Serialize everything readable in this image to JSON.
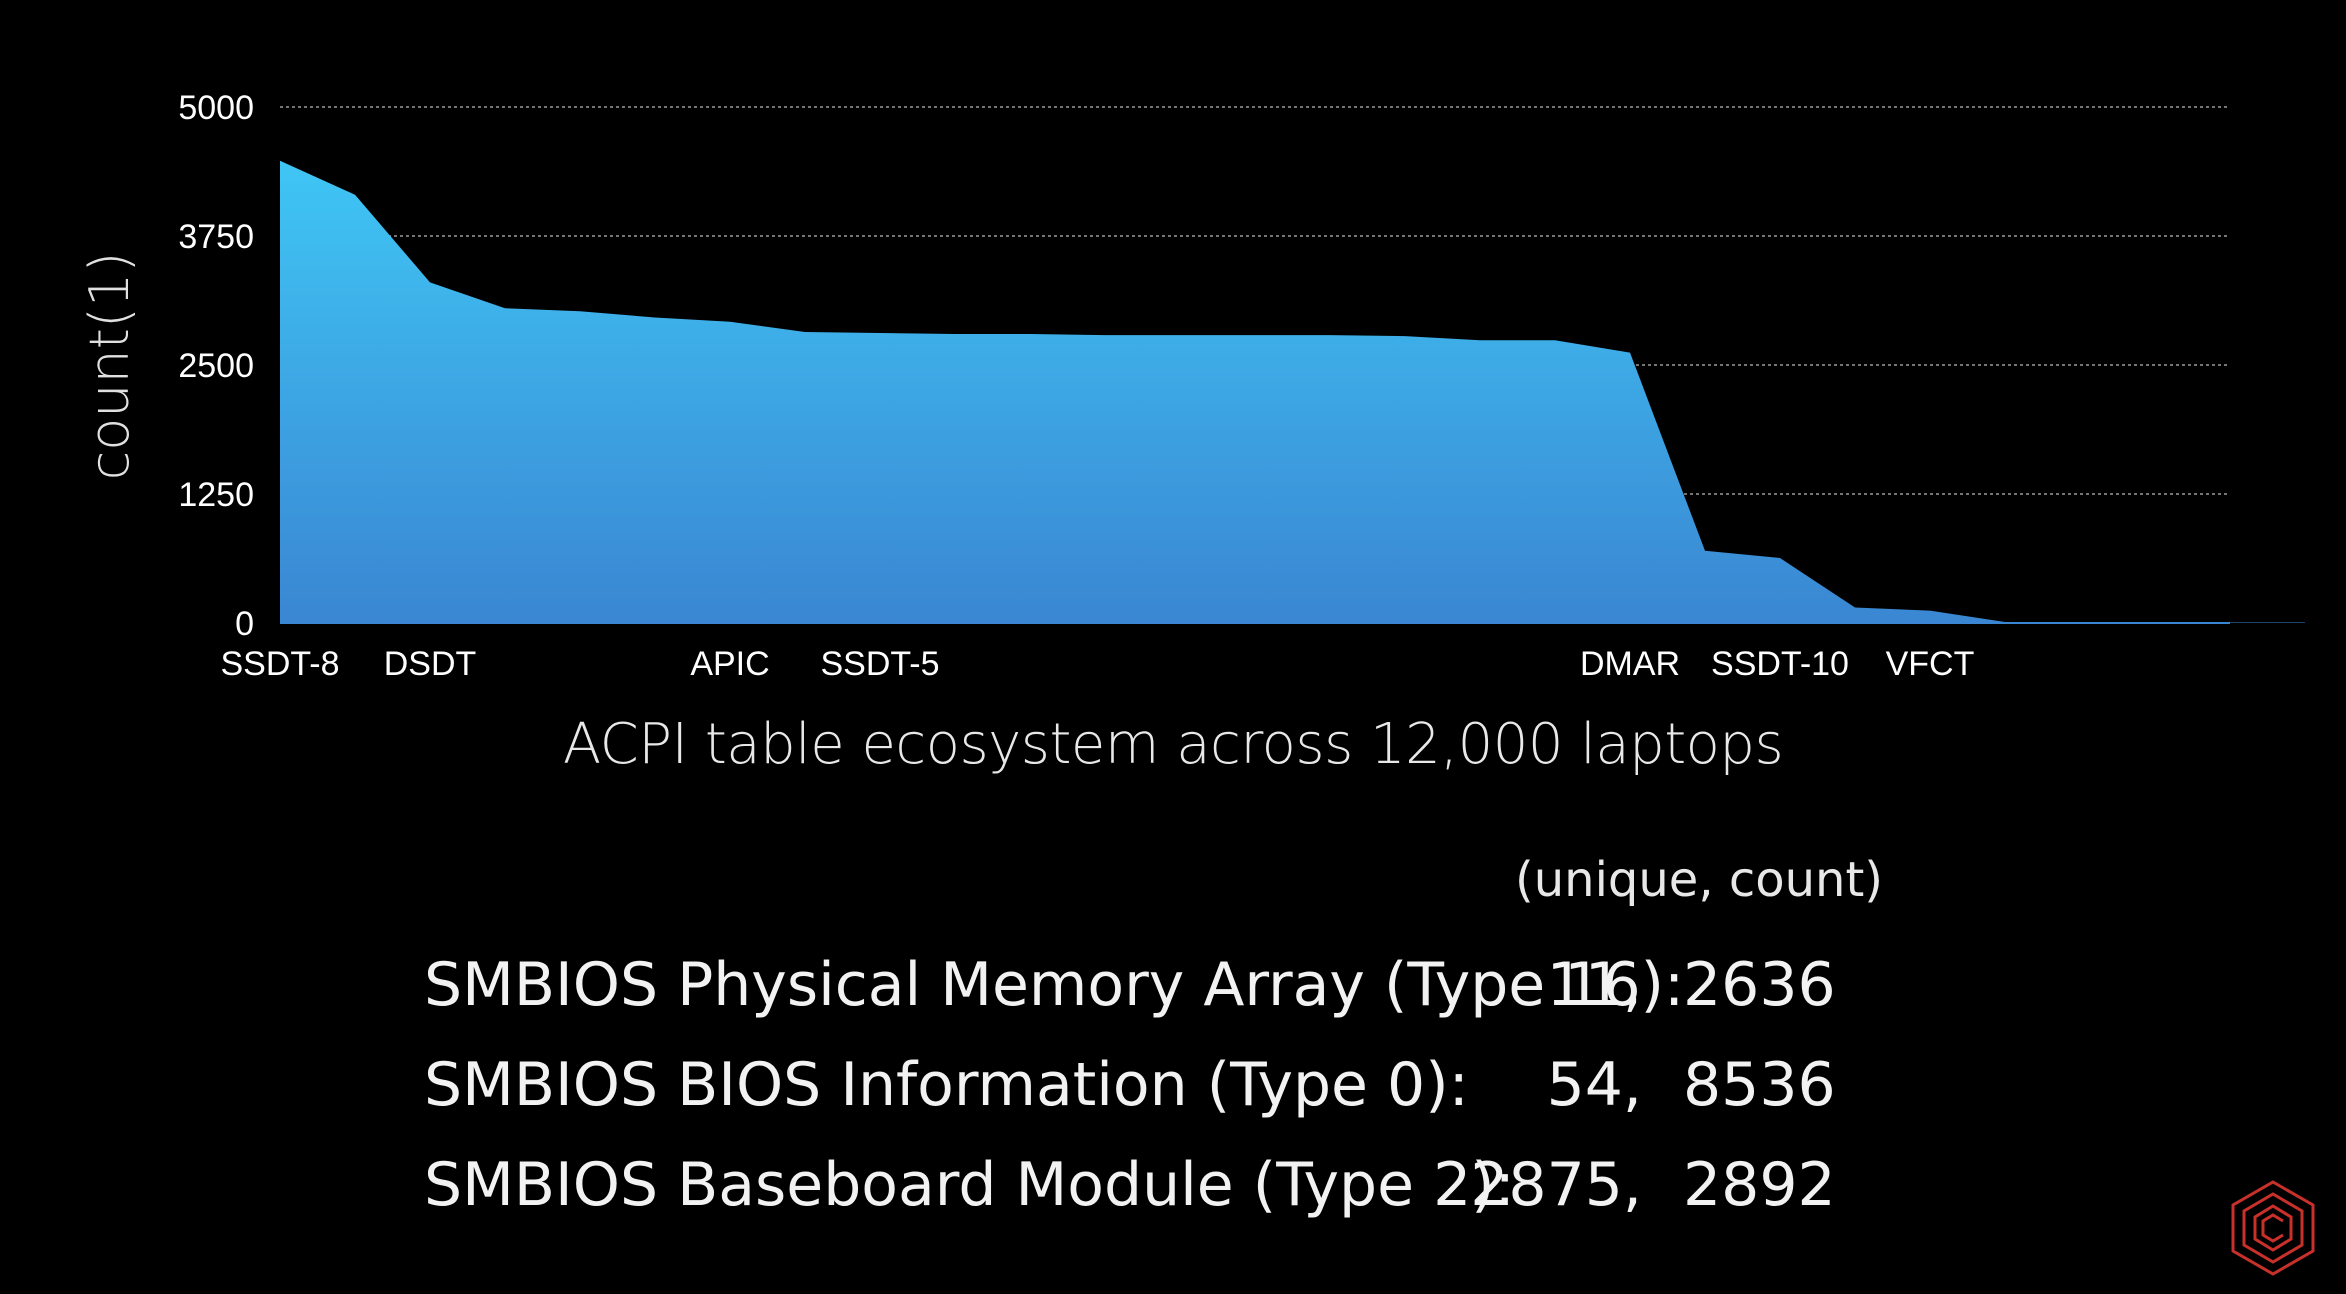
{
  "chart_data": {
    "type": "area",
    "title": "ACPI table ecosystem across 12,000 laptops",
    "ylabel": "count(1)",
    "xlabel": "",
    "ylim": [
      0,
      5000
    ],
    "yticks": [
      "0",
      "1250",
      "2500",
      "3750",
      "5000"
    ],
    "grid": true,
    "color": "#3aaee8",
    "x_labels": [
      {
        "index": 0,
        "text": "SSDT-8"
      },
      {
        "index": 2,
        "text": "DSDT"
      },
      {
        "index": 6,
        "text": "APIC"
      },
      {
        "index": 8,
        "text": "SSDT-5"
      },
      {
        "index": 18,
        "text": "DMAR"
      },
      {
        "index": 20,
        "text": "SSDT-10"
      },
      {
        "index": 22,
        "text": "VFCT"
      }
    ],
    "values": [
      4480,
      4150,
      3300,
      3050,
      3020,
      2960,
      2920,
      2820,
      2810,
      2800,
      2800,
      2790,
      2790,
      2790,
      2790,
      2780,
      2740,
      2740,
      2620,
      700,
      630,
      150,
      120,
      10,
      5,
      5,
      5,
      5
    ]
  },
  "stats": {
    "header": "(unique, count)",
    "rows": [
      {
        "label": "SMBIOS Physical Memory Array (Type 16):",
        "unique": "11,",
        "count": "2636"
      },
      {
        "label": "SMBIOS BIOS Information (Type 0):",
        "unique": "54,",
        "count": "8536"
      },
      {
        "label": "SMBIOS Baseboard Module (Type 2):",
        "unique": "2875,",
        "count": "2892"
      }
    ]
  },
  "logo": {
    "icon": "hexagon-logo-icon",
    "color": "#c8302a"
  }
}
